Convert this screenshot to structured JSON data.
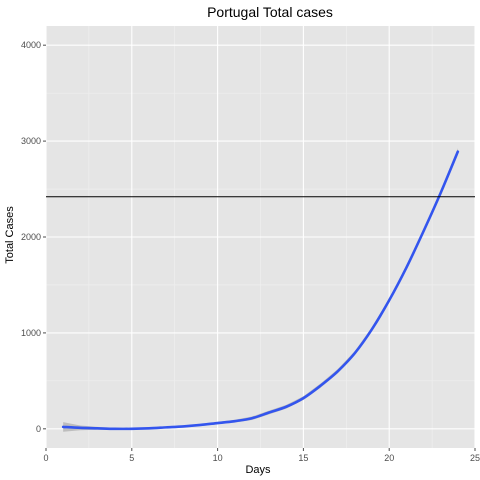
{
  "colors": {
    "panel": "#e5e5e5",
    "grid_major": "#ffffff",
    "grid_minor": "#f0f0f0",
    "line": "#3355ee",
    "ribbon": "#b3b3b3",
    "hline": "#000000",
    "tick": "#4d4d4d"
  },
  "chart_data": {
    "type": "line",
    "title": "Portugal Total cases",
    "xlabel": "Days",
    "ylabel": "Total Cases",
    "xlim": [
      0,
      25
    ],
    "ylim": [
      -200,
      4200
    ],
    "x_ticks": [
      0,
      5,
      10,
      15,
      20,
      25
    ],
    "y_ticks": [
      0,
      1000,
      2000,
      3000,
      4000
    ],
    "x_tick_labels": [
      "0",
      "5",
      "10",
      "15",
      "20",
      "25"
    ],
    "y_tick_labels": [
      "0",
      "1000",
      "2000",
      "3000",
      "4000"
    ],
    "grid": true,
    "legend": "none",
    "hline": 2420,
    "series": [
      {
        "x": [
          1,
          2,
          3,
          4,
          5,
          6,
          7,
          8,
          9,
          10,
          11,
          12,
          13,
          14,
          15,
          16,
          17,
          18,
          19,
          20,
          21,
          22,
          23,
          24
        ],
        "y": [
          20,
          10,
          5,
          0,
          0,
          5,
          15,
          25,
          40,
          60,
          80,
          110,
          170,
          230,
          320,
          450,
          600,
          790,
          1040,
          1340,
          1680,
          2060,
          2460,
          2890
        ],
        "band_lower": [
          -30,
          -15,
          -10,
          -10,
          -10,
          -5,
          5,
          15,
          30,
          48,
          65,
          92,
          150,
          210,
          300,
          428,
          578,
          768,
          1018,
          1318,
          1658,
          2038,
          2438,
          2855
        ],
        "band_upper": [
          70,
          35,
          20,
          10,
          10,
          15,
          25,
          35,
          50,
          72,
          95,
          128,
          190,
          250,
          340,
          472,
          622,
          812,
          1062,
          1362,
          1702,
          2082,
          2482,
          2925
        ]
      }
    ]
  }
}
